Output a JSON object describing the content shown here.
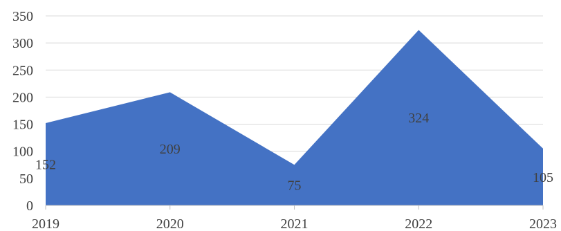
{
  "chart_data": {
    "type": "area",
    "categories": [
      "2019",
      "2020",
      "2021",
      "2022",
      "2023"
    ],
    "values": [
      152,
      209,
      75,
      324,
      105
    ],
    "data_labels": [
      "152",
      "209",
      "75",
      "324",
      "105"
    ],
    "yticks": [
      "0",
      "50",
      "100",
      "150",
      "200",
      "250",
      "300",
      "350"
    ],
    "ylim": [
      0,
      350
    ],
    "grid": true,
    "legend": "none",
    "colors": {
      "area": "#4472c4",
      "grid": "#d9d9d9",
      "text": "#404040"
    }
  }
}
